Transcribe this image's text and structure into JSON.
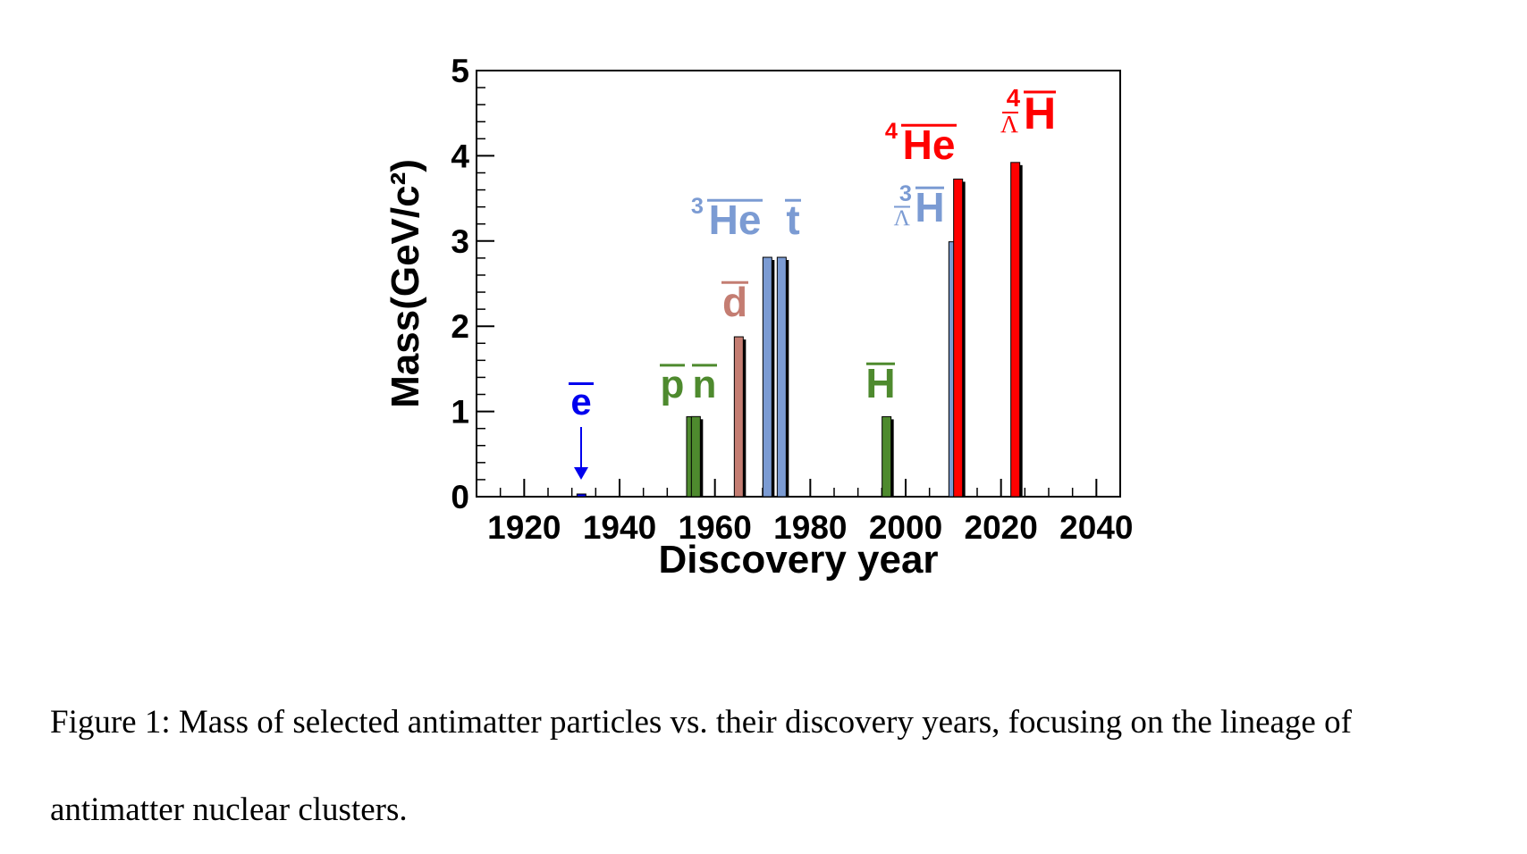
{
  "chart_data": {
    "type": "bar",
    "xlabel": "Discovery year",
    "ylabel": "Mass(GeV/c²)",
    "xlim": [
      1910,
      2045
    ],
    "ylim": [
      0,
      5
    ],
    "x_ticks": [
      "1920",
      "1940",
      "1960",
      "1980",
      "2000",
      "2020",
      "2040"
    ],
    "y_ticks": [
      "0",
      "1",
      "2",
      "3",
      "4",
      "5"
    ],
    "grid": false,
    "legend": "none",
    "bars": [
      {
        "label": "e",
        "year": 1932,
        "mass": 0.000511,
        "color": "#0000ee"
      },
      {
        "label": "p",
        "year": 1955,
        "mass": 0.938,
        "color": "#4e8a2e"
      },
      {
        "label": "n",
        "year": 1956,
        "mass": 0.94,
        "color": "#4e8a2e"
      },
      {
        "label": "d",
        "year": 1965,
        "mass": 1.876,
        "color": "#c47d72"
      },
      {
        "label": "³He",
        "year": 1971,
        "mass": 2.809,
        "color": "#7b9bd3"
      },
      {
        "label": "t",
        "year": 1974,
        "mass": 2.809,
        "color": "#7b9bd3"
      },
      {
        "label": "H",
        "year": 1996,
        "mass": 0.939,
        "color": "#4e8a2e"
      },
      {
        "label": "³ΛH",
        "year": 2010,
        "mass": 2.991,
        "color": "#7b9bd3"
      },
      {
        "label": "⁴He",
        "year": 2011,
        "mass": 3.727,
        "color": "#ff0000"
      },
      {
        "label": "⁴ΛH",
        "year": 2023,
        "mass": 3.922,
        "color": "#ff0000"
      }
    ],
    "annotations": {
      "ebar": {
        "text": "e",
        "color": "#0000ee"
      },
      "pbar": {
        "text": "p",
        "color": "#4e8a2e"
      },
      "nbar": {
        "text": "n",
        "color": "#4e8a2e"
      },
      "dbar": {
        "text": "d",
        "color": "#c47d72"
      },
      "he3": {
        "sup": "3",
        "text": "He",
        "color": "#7b9bd3"
      },
      "tbar": {
        "text": "t",
        "color": "#7b9bd3"
      },
      "hbar": {
        "text": "H",
        "color": "#4e8a2e"
      },
      "h3l": {
        "sup": "3",
        "sub": "Λ",
        "text": "H",
        "color": "#7b9bd3"
      },
      "he4": {
        "sup": "4",
        "text": "He",
        "color": "#ff0000"
      },
      "h4l": {
        "sup": "4",
        "sub": "Λ",
        "text": "H",
        "color": "#ff0000"
      }
    }
  },
  "caption": "Figure 1: Mass of selected antimatter particles vs. their discovery years, focusing on the lineage of antimatter nuclear clusters."
}
